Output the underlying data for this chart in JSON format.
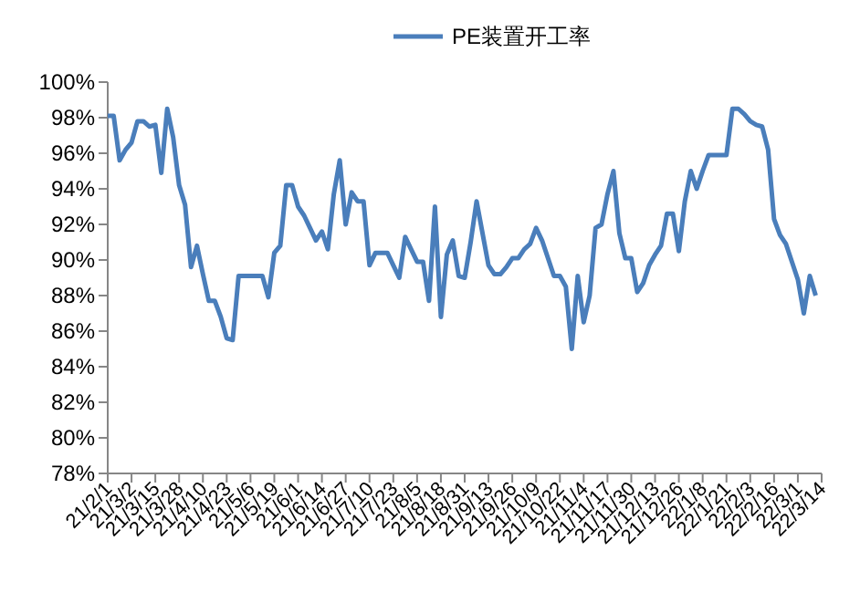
{
  "chart_data": {
    "type": "line",
    "legend": "top",
    "categories": [
      "21/2/1",
      null,
      null,
      null,
      "21/3/2",
      null,
      null,
      null,
      "21/3/15",
      null,
      null,
      null,
      "21/3/28",
      null,
      null,
      null,
      "21/4/10",
      null,
      null,
      null,
      "21/4/23",
      null,
      null,
      null,
      "21/5/6",
      null,
      null,
      null,
      "21/5/19",
      null,
      null,
      null,
      "21/6/1",
      null,
      null,
      null,
      "21/6/14",
      null,
      null,
      null,
      "21/6/27",
      null,
      null,
      null,
      "21/7/10",
      null,
      null,
      null,
      "21/7/23",
      null,
      null,
      null,
      "21/8/5",
      null,
      null,
      null,
      "21/8/18",
      null,
      null,
      null,
      "21/8/31",
      null,
      null,
      null,
      "21/9/13",
      null,
      null,
      null,
      "21/9/26",
      null,
      null,
      null,
      "21/10/9",
      null,
      null,
      null,
      "21/10/22",
      null,
      null,
      null,
      "21/11/4",
      null,
      null,
      null,
      "21/11/17",
      null,
      null,
      null,
      "21/11/30",
      null,
      null,
      null,
      "21/12/13",
      null,
      null,
      null,
      "21/12/26",
      null,
      null,
      null,
      "22/1/8",
      null,
      null,
      null,
      "22/1/21",
      null,
      null,
      null,
      "22/2/3",
      null,
      null,
      null,
      "22/2/16",
      null,
      null,
      null,
      "22/3/1",
      null,
      null,
      null,
      "22/3/14"
    ],
    "series": [
      {
        "name": "PE装置开工率",
        "color": "#4a7ebb",
        "values": [
          98.1,
          98.1,
          95.6,
          96.2,
          96.6,
          97.8,
          97.8,
          97.5,
          97.6,
          94.9,
          98.5,
          96.9,
          94.2,
          93.1,
          89.6,
          90.8,
          89.2,
          87.7,
          87.7,
          86.8,
          85.6,
          85.5,
          89.1,
          89.1,
          89.1,
          89.1,
          89.1,
          87.9,
          90.4,
          90.8,
          94.2,
          94.2,
          93.0,
          92.5,
          91.8,
          91.1,
          91.6,
          90.6,
          93.7,
          95.6,
          92.0,
          93.8,
          93.3,
          93.3,
          89.7,
          90.4,
          90.4,
          90.4,
          89.7,
          89.0,
          91.3,
          90.6,
          89.9,
          89.9,
          87.7,
          93.0,
          86.8,
          90.3,
          91.1,
          89.1,
          89.0,
          91.0,
          93.3,
          91.5,
          89.7,
          89.2,
          89.2,
          89.6,
          90.1,
          90.1,
          90.6,
          90.9,
          91.8,
          91.1,
          90.1,
          89.1,
          89.1,
          88.5,
          85.0,
          89.1,
          86.5,
          88.0,
          91.8,
          92.0,
          93.7,
          95.0,
          91.5,
          90.1,
          90.1,
          88.2,
          88.7,
          89.7,
          90.3,
          90.8,
          92.6,
          92.6,
          90.5,
          93.3,
          95.0,
          94.0,
          95.0,
          95.9,
          95.9,
          95.9,
          95.9,
          98.5,
          98.5,
          98.2,
          97.8,
          97.6,
          97.5,
          96.2,
          92.3,
          91.4,
          90.9,
          89.9,
          88.9,
          87.0,
          89.1,
          88.0,
          null
        ]
      }
    ],
    "ylim": [
      78,
      100
    ],
    "yticks": [
      {
        "value": 78,
        "label": "78%"
      },
      {
        "value": 80,
        "label": "80%"
      },
      {
        "value": 82,
        "label": "82%"
      },
      {
        "value": 84,
        "label": "84%"
      },
      {
        "value": 86,
        "label": "86%"
      },
      {
        "value": 88,
        "label": "88%"
      },
      {
        "value": 90,
        "label": "90%"
      },
      {
        "value": 92,
        "label": "92%"
      },
      {
        "value": 94,
        "label": "94%"
      },
      {
        "value": 96,
        "label": "96%"
      },
      {
        "value": 98,
        "label": "98%"
      },
      {
        "value": 100,
        "label": "100%"
      }
    ]
  }
}
